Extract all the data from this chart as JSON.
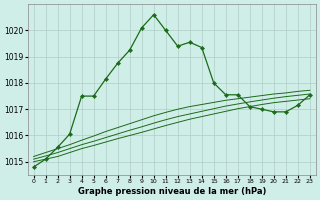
{
  "x": [
    0,
    1,
    2,
    3,
    4,
    5,
    6,
    7,
    8,
    9,
    10,
    11,
    12,
    13,
    14,
    15,
    16,
    17,
    18,
    19,
    20,
    21,
    22,
    23
  ],
  "line_main": [
    1014.8,
    1015.1,
    1015.55,
    1016.05,
    1017.5,
    1017.5,
    1018.15,
    1018.75,
    1019.25,
    1020.1,
    1020.6,
    1020.0,
    1019.4,
    1019.55,
    1019.35,
    1018.0,
    1017.55,
    1017.55,
    1017.1,
    1017.0,
    1016.9,
    1016.9,
    1017.15,
    1017.55
  ],
  "line_a": [
    1015.0,
    1015.1,
    1015.2,
    1015.35,
    1015.5,
    1015.62,
    1015.75,
    1015.88,
    1016.0,
    1016.12,
    1016.25,
    1016.38,
    1016.5,
    1016.62,
    1016.72,
    1016.82,
    1016.92,
    1017.02,
    1017.1,
    1017.18,
    1017.25,
    1017.3,
    1017.35,
    1017.4
  ],
  "line_b": [
    1015.1,
    1015.22,
    1015.35,
    1015.5,
    1015.65,
    1015.78,
    1015.92,
    1016.06,
    1016.2,
    1016.33,
    1016.47,
    1016.6,
    1016.72,
    1016.82,
    1016.92,
    1017.02,
    1017.12,
    1017.2,
    1017.28,
    1017.35,
    1017.42,
    1017.48,
    1017.53,
    1017.58
  ],
  "line_c": [
    1015.2,
    1015.35,
    1015.5,
    1015.65,
    1015.82,
    1015.98,
    1016.15,
    1016.3,
    1016.45,
    1016.6,
    1016.75,
    1016.88,
    1017.0,
    1017.1,
    1017.18,
    1017.26,
    1017.34,
    1017.4,
    1017.46,
    1017.52,
    1017.58,
    1017.62,
    1017.68,
    1017.72
  ],
  "bg_color": "#d0eee8",
  "grid_color": "#b0ccc8",
  "line_color": "#1a6b1a",
  "xlabel": "Graphe pression niveau de la mer (hPa)",
  "ylim": [
    1014.5,
    1021.0
  ],
  "xlim_min": -0.5,
  "xlim_max": 23.5,
  "yticks": [
    1015,
    1016,
    1017,
    1018,
    1019,
    1020
  ],
  "xticks": [
    0,
    1,
    2,
    3,
    4,
    5,
    6,
    7,
    8,
    9,
    10,
    11,
    12,
    13,
    14,
    15,
    16,
    17,
    18,
    19,
    20,
    21,
    22,
    23
  ]
}
